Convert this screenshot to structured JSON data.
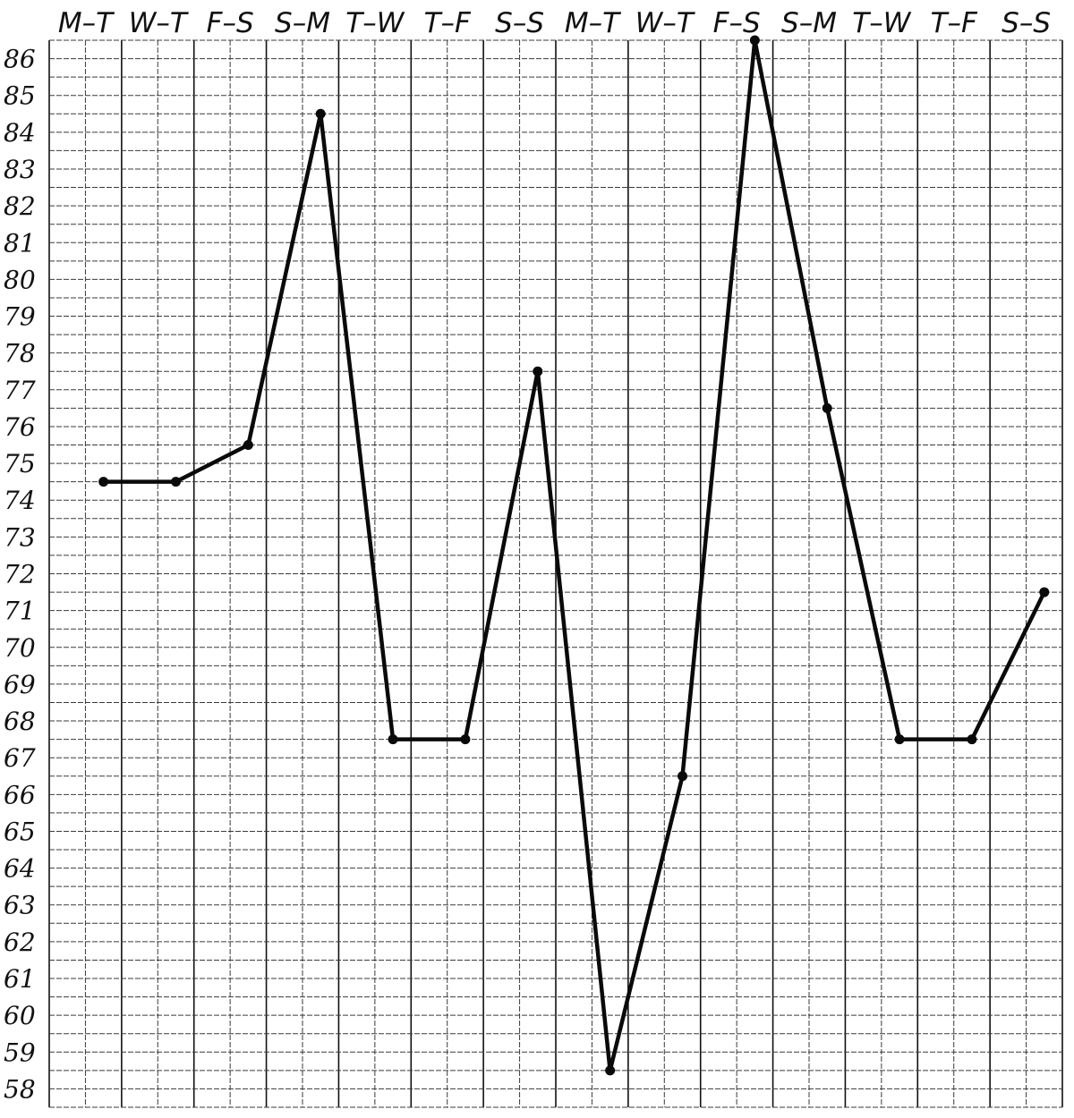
{
  "chart_data": {
    "type": "line",
    "categories": [
      "M–T",
      "W–T",
      "F–S",
      "S–M",
      "T–W",
      "T–F",
      "S–S",
      "M–T",
      "W–T",
      "F–S",
      "S–M",
      "T–W",
      "T–F",
      "S–S"
    ],
    "y_ticks": [
      "86",
      "85",
      "84",
      "83",
      "82",
      "81",
      "80",
      "79",
      "78",
      "77",
      "76",
      "75",
      "74",
      "73",
      "72",
      "71",
      "70",
      "69",
      "68",
      "67",
      "66",
      "65",
      "64",
      "63",
      "62",
      "61",
      "60",
      "59",
      "58"
    ],
    "series": [
      {
        "values": [
          74.5,
          74.5,
          75.5,
          84.5,
          67.5,
          67.5,
          77.5,
          58.5,
          66.5,
          86.5,
          76.5,
          67.5,
          67.5,
          71.5
        ]
      }
    ],
    "ylim": [
      57.5,
      86.5
    ],
    "grid": true,
    "title": "",
    "xlabel": "",
    "ylabel": "",
    "colors": {
      "line": "#0a0a0a",
      "grid": "#3a3a3a",
      "background": "#ffffff"
    }
  }
}
